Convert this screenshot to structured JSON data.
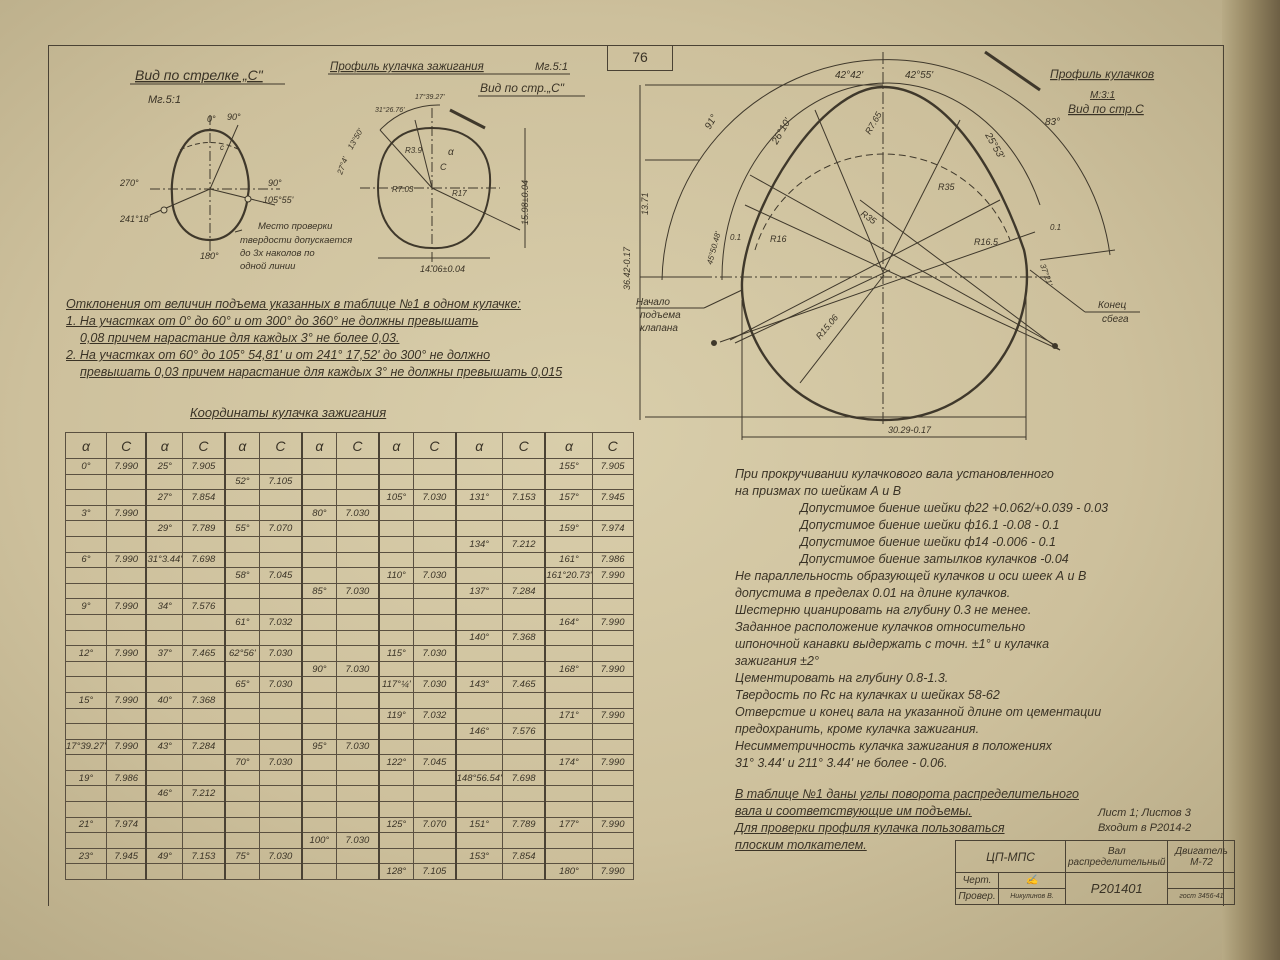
{
  "page_number": "76",
  "left_view": {
    "title": "Вид по стрелке „С\"",
    "scale": "Мг.5:1",
    "labels": {
      "a0": "0°",
      "a90top": "90°",
      "a270": "270°",
      "a90": "90°",
      "a105": "105°55'",
      "a241": "241°18'",
      "a180": "180°",
      "h": "h",
      "c": "c"
    },
    "note": [
      "Место проверки",
      "твердости допускается",
      "до 3х наколов по",
      "одной линии"
    ]
  },
  "ignition_profile": {
    "title": "Профиль кулачка зажигания",
    "scale": "Мг.5:1",
    "view": "Вид по стр.„С\"",
    "labels": {
      "a1": "13°50'",
      "a2": "31°26.76'",
      "a3": "17°39.27'",
      "a4": "27°4'",
      "r1": "R3.9",
      "r2": "R7.03",
      "r3": "R17",
      "alpha": "α",
      "c": "С",
      "h": "15.98±0.04",
      "w": "14.06±0.04"
    }
  },
  "cam_profile": {
    "title": "Профиль кулачков",
    "scale": "М:3:1",
    "view": "Вид по стр.С",
    "labels": {
      "a1": "42°42'",
      "a2": "42°55'",
      "a3": "91°",
      "a4": "83°",
      "a5": "26°10'",
      "a6": "25°53'",
      "r1": "R7.65",
      "r2": "R35",
      "r3": "R35",
      "r4": "R16",
      "r5": "R16.5",
      "r6": "R15.06",
      "d1": "0.1",
      "d2": "0.1",
      "a7": "45°50.48'",
      "a8": "37°21'",
      "h1": "13.71",
      "h2": "36.42-0.17",
      "w": "30.29-0.17"
    },
    "start_label": [
      "Начало",
      "подъема",
      "клапана"
    ],
    "end_label": [
      "Конец",
      "сбега"
    ]
  },
  "deviation_notes": {
    "title": "Отклонения от величин подъема указанных в таблице №1 в одном кулачке:",
    "lines": [
      "1. На участках от 0° до 60° и от 300° до 360° не должны превышать",
      "0,08 причем нарастание для каждых 3° не более 0,03.",
      "2. На участках от 60° до 105° 54,81' и от 241° 17,52' до 300° не должно",
      "превышать 0,03 причем нарастание для каждых 3° не должны превышать 0,015"
    ]
  },
  "table": {
    "title": "Координаты кулачка зажигания",
    "headers": [
      "α",
      "С",
      "α",
      "С",
      "α",
      "С",
      "α",
      "С",
      "α",
      "С",
      "α",
      "С",
      "α",
      "С"
    ],
    "rows": [
      [
        "0°",
        "7.990",
        "25°",
        "7.905",
        "",
        "",
        "",
        "",
        "",
        "",
        "",
        "",
        "155°",
        "7.905"
      ],
      [
        "",
        "",
        "",
        "",
        "52°",
        "7.105",
        "",
        "",
        "",
        "",
        "",
        "",
        "",
        ""
      ],
      [
        "",
        "",
        "27°",
        "7.854",
        "",
        "",
        "",
        "",
        "105°",
        "7.030",
        "131°",
        "7.153",
        "157°",
        "7.945"
      ],
      [
        "3°",
        "7.990",
        "",
        "",
        "",
        "",
        "80°",
        "7.030",
        "",
        "",
        "",
        "",
        "",
        ""
      ],
      [
        "",
        "",
        "29°",
        "7.789",
        "55°",
        "7.070",
        "",
        "",
        "",
        "",
        "",
        "",
        "159°",
        "7.974"
      ],
      [
        "",
        "",
        "",
        "",
        "",
        "",
        "",
        "",
        "",
        "",
        "134°",
        "7.212",
        "",
        ""
      ],
      [
        "6°",
        "7.990",
        "31°3.44'",
        "7.698",
        "",
        "",
        "",
        "",
        "",
        "",
        "",
        "",
        "161°",
        "7.986"
      ],
      [
        "",
        "",
        "",
        "",
        "58°",
        "7.045",
        "",
        "",
        "110°",
        "7.030",
        "",
        "",
        "161°20.73'",
        "7.990"
      ],
      [
        "",
        "",
        "",
        "",
        "",
        "",
        "85°",
        "7.030",
        "",
        "",
        "137°",
        "7.284",
        "",
        ""
      ],
      [
        "9°",
        "7.990",
        "34°",
        "7.576",
        "",
        "",
        "",
        "",
        "",
        "",
        "",
        "",
        "",
        ""
      ],
      [
        "",
        "",
        "",
        "",
        "61°",
        "7.032",
        "",
        "",
        "",
        "",
        "",
        "",
        "164°",
        "7.990"
      ],
      [
        "",
        "",
        "",
        "",
        "",
        "",
        "",
        "",
        "",
        "",
        "140°",
        "7.368",
        "",
        ""
      ],
      [
        "12°",
        "7.990",
        "37°",
        "7.465",
        "62°56'",
        "7.030",
        "",
        "",
        "115°",
        "7.030",
        "",
        "",
        "",
        ""
      ],
      [
        "",
        "",
        "",
        "",
        "",
        "",
        "90°",
        "7.030",
        "",
        "",
        "",
        "",
        "168°",
        "7.990"
      ],
      [
        "",
        "",
        "",
        "",
        "65°",
        "7.030",
        "",
        "",
        "117°¼'",
        "7.030",
        "143°",
        "7.465",
        "",
        ""
      ],
      [
        "15°",
        "7.990",
        "40°",
        "7.368",
        "",
        "",
        "",
        "",
        "",
        "",
        "",
        "",
        "",
        ""
      ],
      [
        "",
        "",
        "",
        "",
        "",
        "",
        "",
        "",
        "119°",
        "7.032",
        "",
        "",
        "171°",
        "7.990"
      ],
      [
        "",
        "",
        "",
        "",
        "",
        "",
        "",
        "",
        "",
        "",
        "146°",
        "7.576",
        "",
        ""
      ],
      [
        "17°39.27'",
        "7.990",
        "43°",
        "7.284",
        "",
        "",
        "95°",
        "7.030",
        "",
        "",
        "",
        "",
        "",
        ""
      ],
      [
        "",
        "",
        "",
        "",
        "70°",
        "7.030",
        "",
        "",
        "122°",
        "7.045",
        "",
        "",
        "174°",
        "7.990"
      ],
      [
        "19°",
        "7.986",
        "",
        "",
        "",
        "",
        "",
        "",
        "",
        "",
        "148°56.54'",
        "7.698",
        "",
        ""
      ],
      [
        "",
        "",
        "46°",
        "7.212",
        "",
        "",
        "",
        "",
        "",
        "",
        "",
        "",
        "",
        ""
      ],
      [
        "",
        "",
        "",
        "",
        "",
        "",
        "",
        "",
        "",
        "",
        "",
        "",
        "",
        ""
      ],
      [
        "21°",
        "7.974",
        "",
        "",
        "",
        "",
        "",
        "",
        "125°",
        "7.070",
        "151°",
        "7.789",
        "177°",
        "7.990"
      ],
      [
        "",
        "",
        "",
        "",
        "",
        "",
        "100°",
        "7.030",
        "",
        "",
        "",
        "",
        "",
        ""
      ],
      [
        "23°",
        "7.945",
        "49°",
        "7.153",
        "75°",
        "7.030",
        "",
        "",
        "",
        "",
        "153°",
        "7.854",
        "",
        ""
      ],
      [
        "",
        "",
        "",
        "",
        "",
        "",
        "",
        "",
        "128°",
        "7.105",
        "",
        "",
        "180°",
        "7.990"
      ]
    ]
  },
  "tech_notes": {
    "lines": [
      "При прокручивании кулачкового вала установленного",
      "на призмах по шейкам А и В",
      "Допустимое биение шейки ф22 +0.062/+0.039 - 0.03",
      "Допустимое биение шейки ф16.1 -0.08 - 0.1",
      "Допустимое биение шейки ф14 -0.006 - 0.1",
      "Допустимое биение затылков кулачков -0.04",
      "Не параллельность образующей кулачков и оси шеек А и В",
      "допустима в пределах 0.01 на длине кулачков.",
      "Шестерню цианировать на глубину 0.3 не менее.",
      "Заданное расположение кулачков относительно",
      "шпоночной канавки выдержать с точн. ±1° и кулачка",
      "зажигания ±2°",
      "Цементировать на глубину 0.8-1.3.",
      "Твердость по Rc на кулачках и шейках 58-62",
      "Отверстие и конец вала на указанной длине от цементации",
      "предохранить, кроме кулачка зажигания.",
      "Несимметричность кулачка зажигания в положениях",
      "31° 3.44' и 211° 3.44' не более - 0.06."
    ],
    "underlined": [
      "В таблице №1 даны углы поворота распределительного",
      "вала и соответствующие им подъемы.",
      "Для проверки профиля кулачка пользоваться",
      "плоским толкателем."
    ]
  },
  "sheet_info": [
    "Лист 1; Листов 3",
    "Входит в Р2014-2"
  ],
  "title_block": {
    "org": "ЦП-МПС",
    "part": "Вал распределительный",
    "engine": "Двигатель М-72",
    "drawing_number": "Р201401",
    "drawn_label": "Черт.",
    "checked_label": "Провер.",
    "checker": "Никулинов В.",
    "date": "гост 3456-41"
  }
}
